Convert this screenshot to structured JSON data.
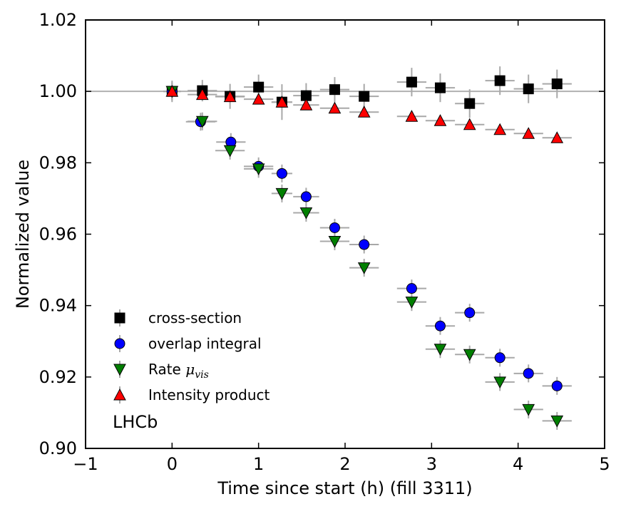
{
  "chart_data": {
    "type": "scatter",
    "title": "",
    "xlabel": "Time since start (h) (fill 3311)",
    "ylabel": "Normalized value",
    "xlim": [
      -1,
      5
    ],
    "ylim": [
      0.9,
      1.02
    ],
    "x_ticks": [
      -1,
      0,
      1,
      2,
      3,
      4,
      5
    ],
    "x_tick_labels": [
      "−1",
      "0",
      "1",
      "2",
      "3",
      "4",
      "5"
    ],
    "y_ticks": [
      0.9,
      0.92,
      0.94,
      0.96,
      0.98,
      1.0,
      1.02
    ],
    "y_tick_labels": [
      "0.90",
      "0.92",
      "0.94",
      "0.96",
      "0.98",
      "1.00",
      "1.02"
    ],
    "reference_line": 1.0,
    "annotation": "LHCb",
    "legend_position": "lower-left",
    "series": [
      {
        "name": "cross-section",
        "legend_label": "cross-section",
        "marker": "square",
        "color": "#000000",
        "x": [
          0.0,
          0.35,
          0.67,
          1.0,
          1.27,
          1.55,
          1.88,
          2.22,
          2.77,
          3.1,
          3.44,
          3.79,
          4.12,
          4.45
        ],
        "y": [
          1.0,
          1.0002,
          0.9986,
          1.0012,
          0.997,
          0.9988,
          1.0005,
          0.9986,
          1.0026,
          1.001,
          0.9966,
          1.003,
          1.0007,
          1.0021
        ],
        "xerr": [
          0.1,
          0.17,
          0.17,
          0.17,
          0.12,
          0.15,
          0.17,
          0.17,
          0.17,
          0.17,
          0.17,
          0.17,
          0.17,
          0.17
        ],
        "yerr": [
          0.003,
          0.003,
          0.0035,
          0.0035,
          0.005,
          0.0035,
          0.0035,
          0.0035,
          0.004,
          0.004,
          0.004,
          0.004,
          0.004,
          0.004
        ]
      },
      {
        "name": "overlap integral",
        "legend_label": "overlap integral",
        "marker": "circle",
        "color": "#0000ff",
        "x": [
          0.0,
          0.33,
          0.68,
          1.0,
          1.27,
          1.55,
          1.88,
          2.22,
          2.77,
          3.1,
          3.44,
          3.79,
          4.12,
          4.45
        ],
        "y": [
          1.0,
          0.9915,
          0.9858,
          0.979,
          0.977,
          0.9705,
          0.9618,
          0.9571,
          0.9448,
          0.9343,
          0.938,
          0.9254,
          0.921,
          0.9175
        ],
        "xerr": [
          0.1,
          0.17,
          0.17,
          0.17,
          0.12,
          0.15,
          0.17,
          0.17,
          0.17,
          0.17,
          0.17,
          0.17,
          0.17,
          0.17
        ],
        "yerr": [
          0.0025,
          0.0025,
          0.0025,
          0.0025,
          0.0025,
          0.0025,
          0.0025,
          0.0025,
          0.0025,
          0.0025,
          0.0025,
          0.0025,
          0.0025,
          0.0025
        ]
      },
      {
        "name": "Rate mu_vis",
        "legend_label": "Rate ",
        "legend_label_math": "μ",
        "legend_label_sub": "vis",
        "marker": "triangle-down",
        "color": "#007f00",
        "x": [
          0.0,
          0.35,
          0.67,
          1.0,
          1.27,
          1.55,
          1.88,
          2.22,
          2.77,
          3.1,
          3.44,
          3.79,
          4.12,
          4.45
        ],
        "y": [
          1.0,
          0.9916,
          0.9834,
          0.9783,
          0.9714,
          0.966,
          0.958,
          0.9506,
          0.941,
          0.9278,
          0.9263,
          0.9186,
          0.9109,
          0.9077
        ],
        "xerr": [
          0.1,
          0.17,
          0.17,
          0.17,
          0.12,
          0.15,
          0.17,
          0.17,
          0.17,
          0.17,
          0.17,
          0.17,
          0.17,
          0.17
        ],
        "yerr": [
          0.0025,
          0.0025,
          0.0025,
          0.0025,
          0.0025,
          0.0025,
          0.0025,
          0.0025,
          0.0025,
          0.0025,
          0.0025,
          0.0025,
          0.0025,
          0.0025
        ]
      },
      {
        "name": "Intensity product",
        "legend_label": "Intensity product",
        "marker": "triangle-up",
        "color": "#ff0000",
        "x": [
          0.0,
          0.35,
          0.67,
          1.0,
          1.27,
          1.55,
          1.88,
          2.22,
          2.77,
          3.1,
          3.44,
          3.79,
          4.12,
          4.45
        ],
        "y": [
          1.0,
          0.9991,
          0.9985,
          0.9978,
          0.997,
          0.9962,
          0.9953,
          0.9942,
          0.993,
          0.9918,
          0.9907,
          0.9893,
          0.9882,
          0.987
        ],
        "xerr": [
          0.1,
          0.17,
          0.17,
          0.17,
          0.12,
          0.15,
          0.17,
          0.17,
          0.17,
          0.17,
          0.17,
          0.17,
          0.17,
          0.17
        ],
        "yerr": [
          0.0005,
          0.0005,
          0.0005,
          0.0005,
          0.0005,
          0.0005,
          0.0005,
          0.0005,
          0.0005,
          0.0005,
          0.0005,
          0.0005,
          0.0005,
          0.0005
        ]
      }
    ]
  }
}
